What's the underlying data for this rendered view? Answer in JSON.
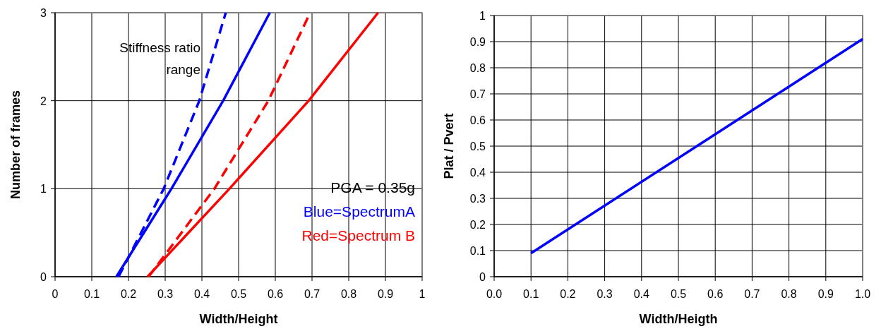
{
  "chart_data": [
    {
      "type": "line",
      "xlabel": "Width/Height",
      "ylabel": "Number of frames",
      "xlim": [
        0,
        1
      ],
      "ylim": [
        0,
        3
      ],
      "xticks": [
        0,
        0.1,
        0.2,
        0.3,
        0.4,
        0.5,
        0.6,
        0.7,
        0.8,
        0.9,
        1
      ],
      "yticks": [
        0,
        1,
        2,
        3
      ],
      "grid": true,
      "marker": "none",
      "annotations": [
        "Stiffness ratio range",
        "PGA = 0.35g",
        "Blue=SpectrumA",
        "Red=Spectrum B"
      ],
      "series": [
        {
          "color": "#0000ff",
          "line_style": "solid",
          "x": [
            0.167,
            0.296,
            0.317,
            0.458,
            0.585
          ],
          "values": [
            0,
            0.86,
            1,
            2,
            3
          ]
        },
        {
          "color": "#0000ff",
          "line_style": "dashed",
          "x": [
            0.173,
            0.296,
            0.393,
            0.465
          ],
          "values": [
            0,
            1,
            2,
            3
          ]
        },
        {
          "color": "#ff0000",
          "line_style": "solid",
          "x": [
            0.252,
            0.475,
            0.691,
            0.88
          ],
          "values": [
            0,
            1,
            2,
            3
          ]
        },
        {
          "color": "#ff0000",
          "line_style": "dashed",
          "x": [
            0.255,
            0.434,
            0.581,
            0.695
          ],
          "values": [
            0,
            1,
            2,
            3
          ]
        }
      ]
    },
    {
      "type": "line",
      "xlabel": "Width/Heigth",
      "ylabel": "Plat / Pvert",
      "xlim": [
        0,
        1
      ],
      "ylim": [
        0,
        1
      ],
      "xticks": [
        {
          "value": 0,
          "label": "0.0"
        },
        {
          "value": 0.1,
          "label": "0.1"
        },
        {
          "value": 0.2,
          "label": "0.2"
        },
        {
          "value": 0.3,
          "label": "0.3"
        },
        {
          "value": 0.4,
          "label": "0.4"
        },
        {
          "value": 0.5,
          "label": "0.5"
        },
        {
          "value": 0.6,
          "label": "0.6"
        },
        {
          "value": 0.7,
          "label": "0.7"
        },
        {
          "value": 0.8,
          "label": "0.8"
        },
        {
          "value": 0.9,
          "label": "0.9"
        },
        {
          "value": 1,
          "label": "1.0"
        }
      ],
      "yticks": [
        0,
        0.1,
        0.2,
        0.3,
        0.4,
        0.5,
        0.6,
        0.7,
        0.8,
        0.9,
        1
      ],
      "grid": true,
      "marker": "none",
      "series": [
        {
          "color": "#0000ff",
          "line_style": "solid",
          "x": [
            0.1,
            1.0
          ],
          "values": [
            0.09,
            0.91
          ]
        }
      ]
    }
  ]
}
